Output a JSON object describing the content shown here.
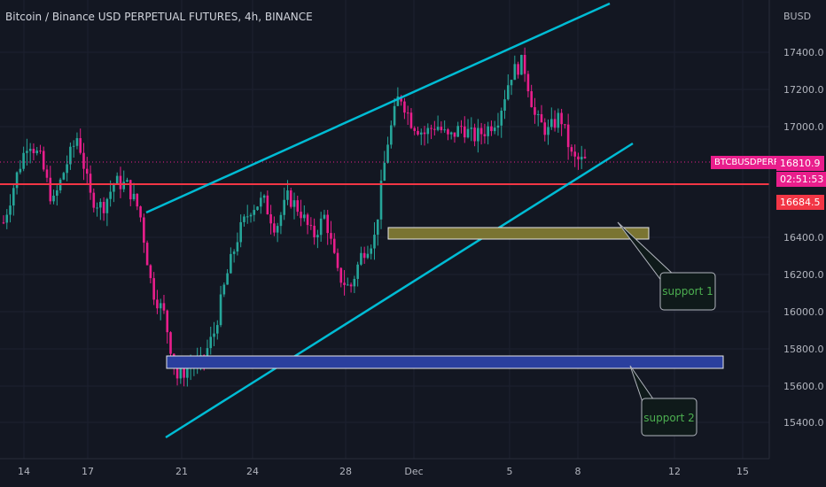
{
  "header": {
    "title": "Bitcoin / Binance USD PERPETUAL FUTURES, 4h, BINANCE"
  },
  "axis": {
    "currency": "BUSD",
    "y_ticks": [
      "17400.0",
      "17200.0",
      "17000.0",
      "16400.0",
      "16200.0",
      "16000.0",
      "15800.0",
      "15600.0",
      "15400.0"
    ],
    "x_ticks": [
      "14",
      "17",
      "21",
      "24",
      "28",
      "Dec",
      "5",
      "8",
      "12",
      "15"
    ]
  },
  "price_tags": {
    "symbol": "BTCBUSDPERP",
    "last_price": "16810.9",
    "countdown": "02:51:53",
    "red_line_price": "16684.5"
  },
  "annotations": {
    "support_1": "support 1",
    "support_2": "support 2"
  },
  "colors": {
    "background": "#131722",
    "up": "#26a69a",
    "down": "#e91e8c",
    "trendline": "#00bcd4",
    "red_line": "#f23645",
    "support1_zone": "#7a7432",
    "support2_zone": "#2a3f9e",
    "tag_magenta": "#e91e8c",
    "tag_red": "#f23645",
    "label_green": "#4caf50"
  },
  "chart_data": {
    "type": "candlestick",
    "symbol": "BTCBUSDPERP",
    "interval": "4h",
    "ylim": [
      15300,
      17650
    ],
    "y_ticks": [
      15400,
      15600,
      15800,
      16000,
      16200,
      16400,
      17000,
      17200,
      17400
    ],
    "x_ticks": [
      "14",
      "17",
      "21",
      "24",
      "28",
      "Dec",
      "5",
      "8",
      "12",
      "15"
    ],
    "last_price": 16810.9,
    "horizontal_line": 16684.5,
    "trend_channel": {
      "upper": {
        "from": {
          "date": "Nov 20",
          "price": 16530
        },
        "to": {
          "date": "Dec 9",
          "price": 17710
        }
      },
      "lower": {
        "from": {
          "date": "Nov 20",
          "price": 15340
        },
        "to": {
          "date": "Dec 9",
          "price": 16880
        }
      }
    },
    "support_zones": [
      {
        "label": "support 1",
        "top": 16440,
        "bottom": 16380
      },
      {
        "label": "support 2",
        "top": 15760,
        "bottom": 15690
      }
    ],
    "approx_path": [
      [
        0,
        16480
      ],
      [
        2,
        16720
      ],
      [
        4,
        16930
      ],
      [
        6,
        16820
      ],
      [
        8,
        16580
      ],
      [
        10,
        16780
      ],
      [
        12,
        16950
      ],
      [
        14,
        16620
      ],
      [
        16,
        16560
      ],
      [
        18,
        16700
      ],
      [
        20,
        16680
      ],
      [
        22,
        16540
      ],
      [
        24,
        16120
      ],
      [
        26,
        15980
      ],
      [
        28,
        15640
      ],
      [
        30,
        15700
      ],
      [
        32,
        15720
      ],
      [
        34,
        15880
      ],
      [
        36,
        16180
      ],
      [
        38,
        16420
      ],
      [
        40,
        16560
      ],
      [
        42,
        16600
      ],
      [
        44,
        16450
      ],
      [
        46,
        16620
      ],
      [
        48,
        16540
      ],
      [
        50,
        16400
      ],
      [
        52,
        16520
      ],
      [
        54,
        16200
      ],
      [
        56,
        16120
      ],
      [
        58,
        16320
      ],
      [
        60,
        16400
      ],
      [
        62,
        16900
      ],
      [
        64,
        17180
      ],
      [
        66,
        17020
      ],
      [
        68,
        16960
      ],
      [
        70,
        17010
      ],
      [
        72,
        16930
      ],
      [
        74,
        17000
      ],
      [
        76,
        16940
      ],
      [
        78,
        16980
      ],
      [
        80,
        17050
      ],
      [
        82,
        17280
      ],
      [
        84,
        17350
      ],
      [
        86,
        17040
      ],
      [
        88,
        16970
      ],
      [
        90,
        17060
      ],
      [
        92,
        16820
      ],
      [
        94,
        16810
      ]
    ]
  }
}
